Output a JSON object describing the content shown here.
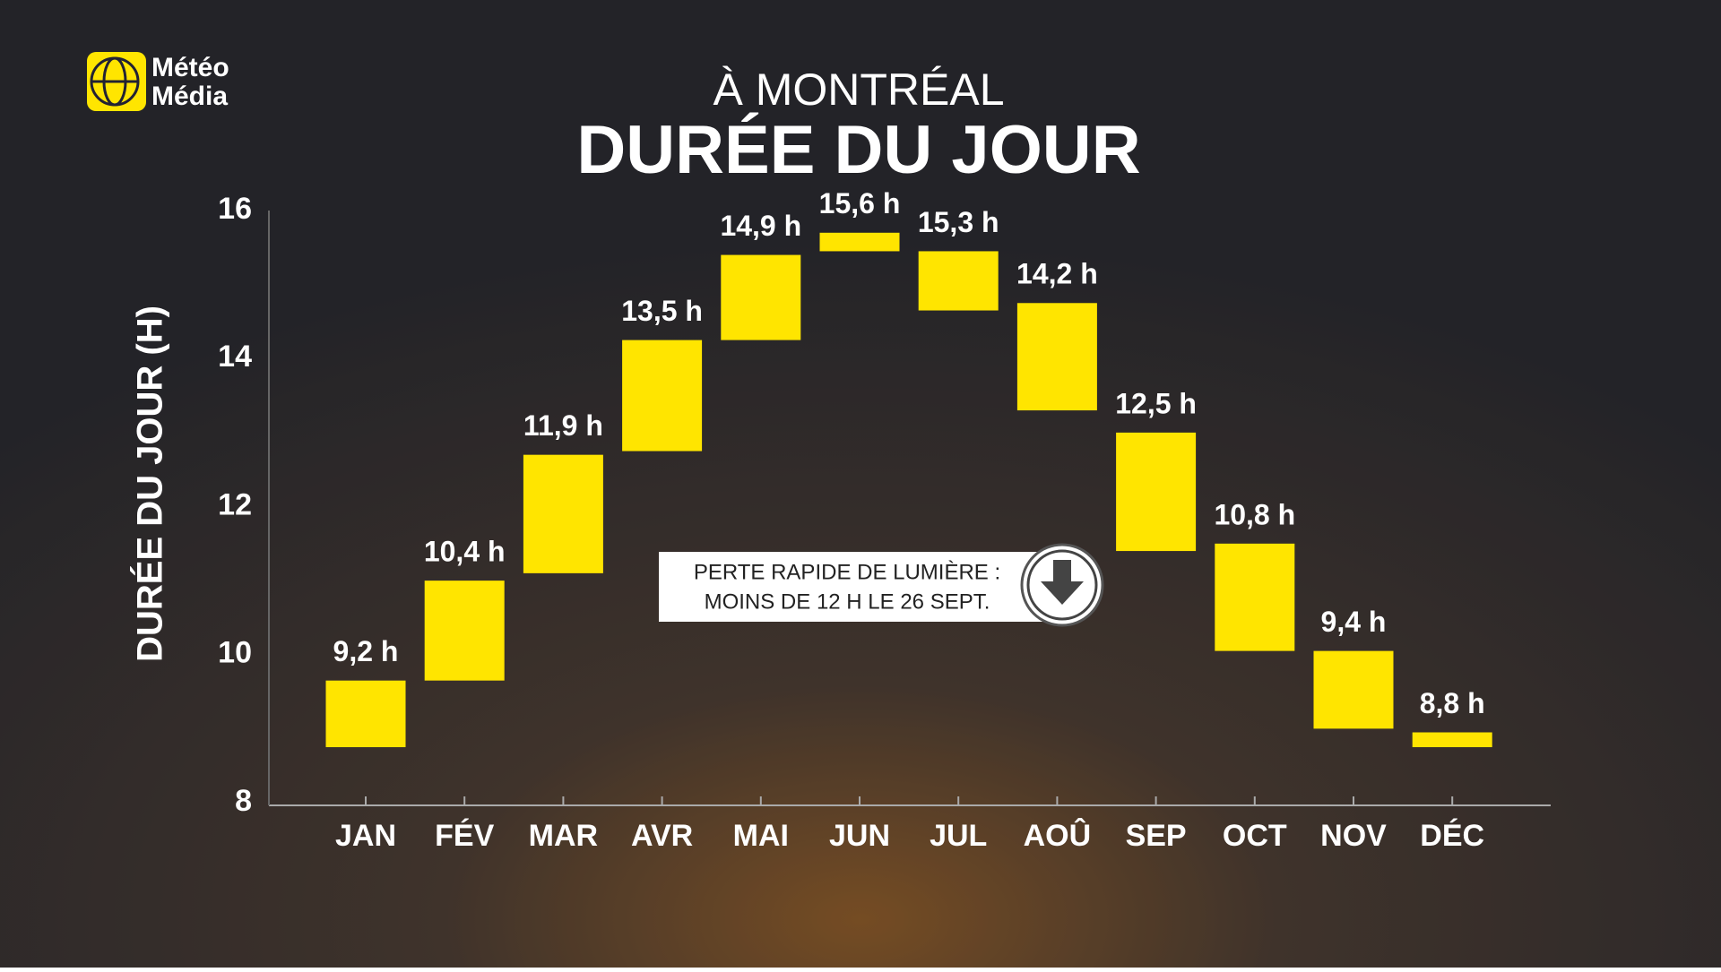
{
  "brand": [
    "Météo",
    "Média"
  ],
  "chart_data": {
    "type": "floating_bar",
    "title": "DURÉE DU JOUR",
    "subtitle": "À MONTRÉAL",
    "y_label": "DURÉE DU JOUR (H)",
    "categories": [
      "JAN",
      "FÉV",
      "MAR",
      "AVR",
      "MAI",
      "JUN",
      "JUL",
      "AOÛ",
      "SEP",
      "OCT",
      "NOV",
      "DÉC"
    ],
    "values": [
      9.2,
      10.4,
      11.9,
      13.5,
      14.9,
      15.6,
      15.3,
      14.2,
      12.5,
      10.8,
      9.4,
      8.8
    ],
    "value_labels": [
      "9,2 h",
      "10,4 h",
      "11,9 h",
      "13,5 h",
      "14,9 h",
      "15,6 h",
      "15,3 h",
      "14,2 h",
      "12,5 h",
      "10,8 h",
      "9,4 h",
      "8,8 h"
    ],
    "low": [
      8.75,
      9.65,
      11.1,
      12.75,
      14.25,
      15.45,
      14.65,
      13.3,
      11.4,
      10.05,
      9.0,
      8.75
    ],
    "high": [
      9.65,
      11.0,
      12.7,
      14.25,
      15.4,
      15.7,
      15.45,
      14.75,
      13.0,
      11.5,
      10.05,
      8.95
    ],
    "color": "#ffe500",
    "ylim": [
      8,
      16
    ],
    "yticks": [
      8,
      10,
      12,
      14,
      16
    ],
    "annotation": [
      "PERTE RAPIDE DE LUMIÈRE :",
      "MOINS DE 12 H LE 26 SEPT."
    ]
  }
}
